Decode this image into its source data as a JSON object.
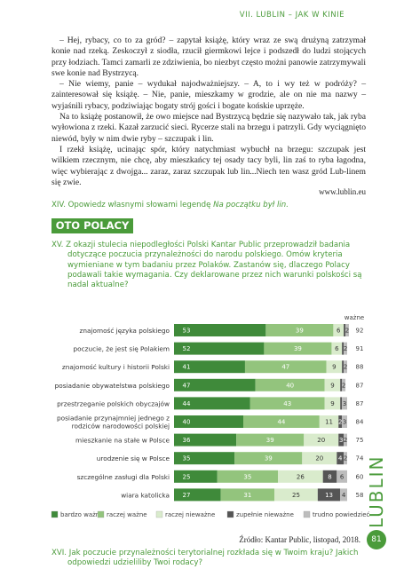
{
  "header": "VII. LUBLIN – JAK W KINIE",
  "paragraphs": [
    "– Hej, rybacy, co to za gród? – zapytał książę, który wraz ze swą drużyną zatrzymał konie nad rzeką. Zeskoczył z siodła, rzucił giermkowi lejce i podszedł do ludzi stojących przy łodziach. Tamci zamarli ze zdziwienia, bo niezbyt często możni panowie zatrzymywali swe konie nad Bystrzycą.",
    "– Nie wiemy, panie – wydukał najodważniejszy. – A, to i wy też w podróży? – zainteresował się książę. – Nie, panie, mieszkamy w grodzie, ale on nie ma nazwy – wyjaśnili rybacy, podziwiając bogaty strój gości i bogate końskie uprzęże.",
    "Na to książę postanowił, że owo miejsce nad Bystrzycą będzie się nazywało tak, jak ryba wyłowiona z rzeki. Kazał zarzucić sieci. Rycerze stali na brzegu i patrzyli. Gdy wyciągnięto niewód, były w nim dwie ryby – szczupak i lin.",
    "I rzekł książę, ucinając spór, który natychmiast wybuchł na brzegu: szczupak jest wilkiem rzecznym, nie chcę, aby mieszkańcy tej osady tacy byli, lin zaś to ryba łagodna, więc wybierając z dwojga... zaraz, zaraz szczupak lub lin...Niech ten wasz gród Lub-linem się zwie."
  ],
  "source1": "www.lublin.eu",
  "task14": {
    "number": "XIV.",
    "text": "Opowiedz własnymi słowami legendę ",
    "title": "Na początku był lin."
  },
  "section": "OTO POLACY",
  "task15": {
    "number": "XV.",
    "text": "Z okazji stulecia niepodległości Polski Kantar Public przeprowadził badania dotyczące poczucia przynależności do narodu polskiego. Omów kryteria wymieniane w tym badaniu przez Polaków. Zastanów się, dlaczego Polacy podawali takie wymagania. Czy deklarowane przez nich warunki polskości są nadal aktualne?"
  },
  "chart_data": {
    "type": "stacked-bar-horizontal",
    "categories": [
      "znajomość języka polskiego",
      "poczucie, że jest się Polakiem",
      "znajomość kultury i historii Polski",
      "posiadanie obywatelstwa polskiego",
      "przestrzeganie polskich obyczajów",
      "posiadanie przynajmniej jednego z rodziców narodowości polskiej",
      "mieszkanie na stałe w Polsce",
      "urodzenie się w Polsce",
      "szczególne zasługi dla Polski",
      "wiara katolicka"
    ],
    "xlim": [
      0,
      100
    ],
    "series": [
      {
        "name": "bardzo ważne",
        "color": "#3f8a3a",
        "values": [
          53,
          52,
          41,
          47,
          44,
          40,
          36,
          35,
          25,
          27
        ]
      },
      {
        "name": "raczej ważne",
        "color": "#93c47d",
        "values": [
          39,
          39,
          47,
          40,
          43,
          44,
          39,
          39,
          35,
          31
        ]
      },
      {
        "name": "raczej nieważne",
        "color": "#d9ebcc",
        "values": [
          6,
          6,
          9,
          9,
          9,
          11,
          20,
          20,
          26,
          25
        ]
      },
      {
        "name": "zupełnie nieważne",
        "color": "#555555",
        "values": [
          1,
          1,
          1,
          1,
          1,
          2,
          3,
          4,
          8,
          13
        ]
      },
      {
        "name": "trudno powiedzieć",
        "color": "#bdbdbd",
        "values": [
          2,
          2,
          2,
          2,
          3,
          3,
          2,
          2,
          6,
          4
        ]
      }
    ],
    "totals": {
      "label": "ważne",
      "values": [
        92,
        91,
        88,
        87,
        87,
        84,
        75,
        74,
        60,
        58
      ]
    }
  },
  "source2": "Źródło: Kantar Public, listopad, 2018.",
  "task16": {
    "number": "XVI.",
    "text": "Jak poczucie przynależności terytorialnej rozkłada się w Twoim kraju? Jakich odpowiedzi udzieliliby Twoi rodacy?"
  },
  "side_label": "LUBLIN",
  "page_number": "81"
}
